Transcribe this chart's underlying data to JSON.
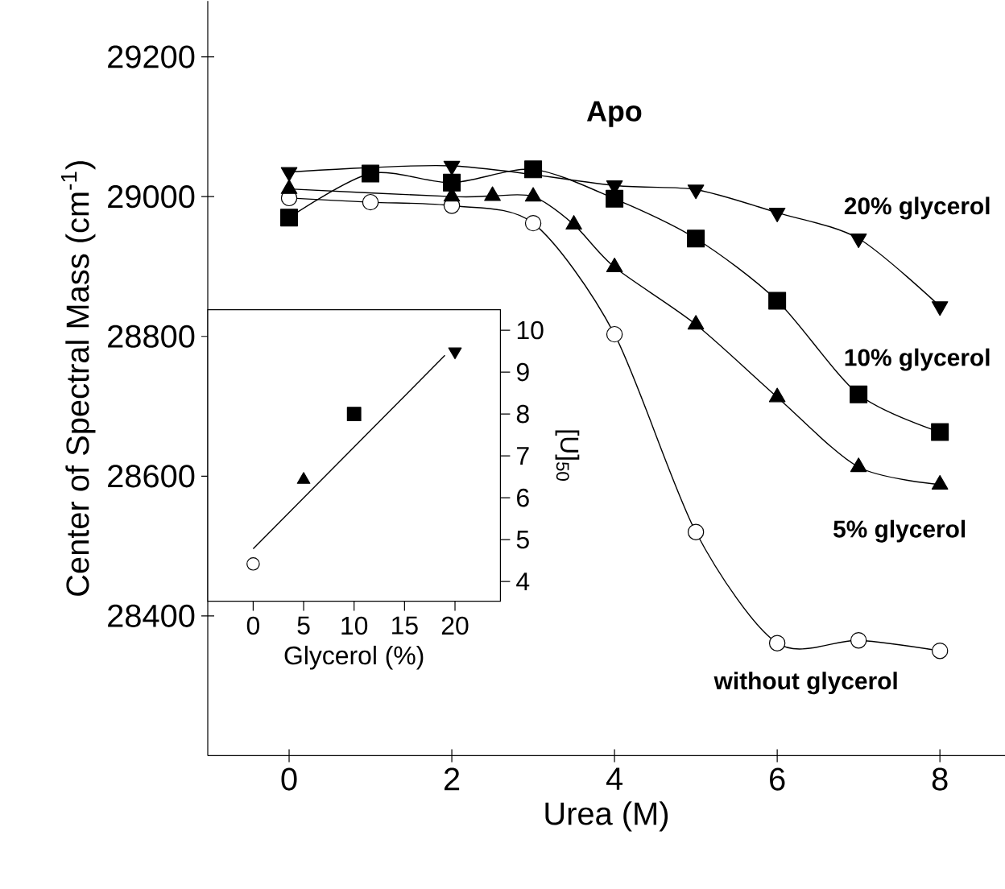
{
  "chart_data": [
    {
      "type": "line",
      "title": "Apo",
      "xlabel": "Urea (M)",
      "ylabel": "Center of Spectral Mass (cm$^{-1}$)",
      "xlim": [
        -1,
        8.8
      ],
      "ylim": [
        28200,
        29280
      ],
      "xticks": [
        0,
        2,
        4,
        6,
        8
      ],
      "yticks": [
        28400,
        28600,
        28800,
        29000,
        29200
      ],
      "line_style": "solid",
      "series": [
        {
          "name": "without glycerol",
          "color": "#000000",
          "marker": "circle",
          "x": [
            0,
            1,
            2,
            3,
            4,
            5,
            6,
            7,
            8
          ],
          "values": [
            28998,
            28992,
            28987,
            28962,
            28803,
            28520,
            28361,
            28365,
            28350
          ]
        },
        {
          "name": "5% glycerol",
          "color": "#000000",
          "marker": "triangle",
          "x": [
            0,
            2,
            2.5,
            3,
            3.5,
            4,
            5,
            6,
            7,
            8
          ],
          "values": [
            29011,
            29000,
            29001,
            29000,
            28960,
            28899,
            28817,
            28713,
            28613,
            28588
          ]
        },
        {
          "name": "10% glycerol",
          "color": "#000000",
          "marker": "square",
          "x": [
            0,
            1,
            2,
            3,
            4,
            5,
            6,
            7,
            8
          ],
          "values": [
            28970,
            29033,
            29020,
            29039,
            28997,
            28940,
            28851,
            28717,
            28663
          ]
        },
        {
          "name": "20% glycerol",
          "color": "#000000",
          "marker": "triangle-down",
          "x": [
            0,
            2,
            3,
            4,
            5,
            6,
            7,
            8
          ],
          "values": [
            29035,
            29044,
            null,
            29016,
            29010,
            28977,
            28940,
            28843
          ]
        }
      ]
    },
    {
      "type": "scatter",
      "xlabel": "Glycerol (%)",
      "ylabel": "[U]$_{50}$",
      "xlim": [
        -4.5,
        24.5
      ],
      "ylim": [
        3.53,
        10.49
      ],
      "xticks": [
        0,
        5,
        10,
        15,
        20
      ],
      "yticks": [
        4,
        5,
        6,
        7,
        8,
        9,
        10
      ],
      "series": [
        {
          "color": "#000000",
          "marker": "circle",
          "x": [
            0
          ],
          "values": [
            4.42
          ]
        },
        {
          "color": "#000000",
          "marker": "triangle",
          "x": [
            5
          ],
          "values": [
            6.43
          ]
        },
        {
          "color": "#000000",
          "marker": "square",
          "x": [
            10
          ],
          "values": [
            8.0
          ]
        },
        {
          "color": "#000000",
          "marker": "triangle-down",
          "x": [
            20
          ],
          "values": [
            9.49
          ]
        },
        {
          "type": "line",
          "color": "#000000",
          "marker": "none",
          "x": [
            0,
            19
          ],
          "values": [
            4.78,
            9.4
          ]
        }
      ]
    }
  ]
}
